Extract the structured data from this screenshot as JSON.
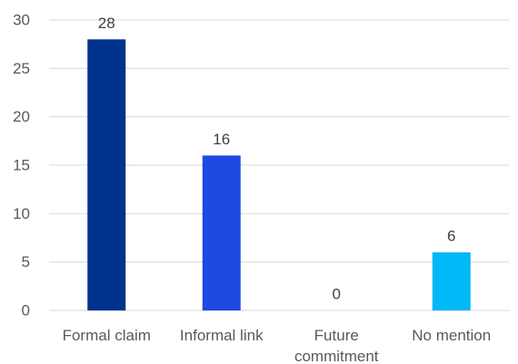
{
  "chart_data": {
    "type": "bar",
    "title": "",
    "xlabel": "",
    "ylabel": "",
    "categories": [
      [
        "Formal claim"
      ],
      [
        "Informal link"
      ],
      [
        "Future",
        "commitment"
      ],
      [
        "No mention"
      ]
    ],
    "values": [
      28,
      16,
      0,
      6
    ],
    "data_labels": [
      "28",
      "16",
      "0",
      "6"
    ],
    "bar_colors": [
      "#00338d",
      "#1e49e2",
      "#1e49e2",
      "#00b8f5"
    ],
    "ylim": [
      0,
      30
    ],
    "y_ticks": [
      0,
      5,
      10,
      15,
      20,
      25,
      30
    ],
    "y_tick_labels": [
      "0",
      "5",
      "10",
      "15",
      "20",
      "25",
      "30"
    ],
    "grid": true,
    "legend": "none"
  }
}
